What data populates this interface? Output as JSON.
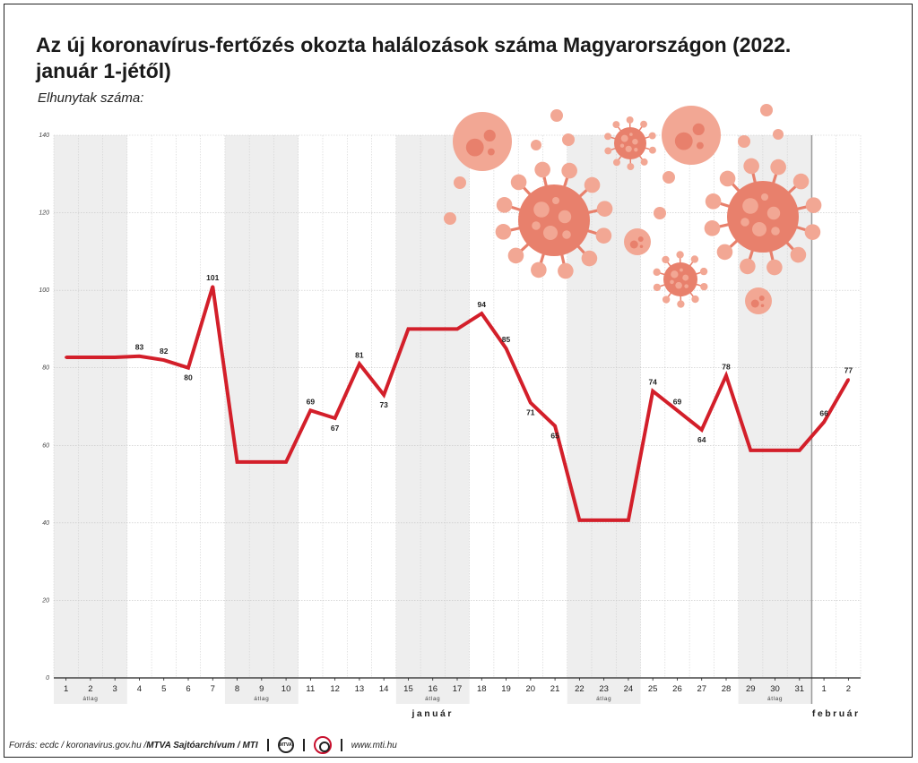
{
  "title": "Az új koronavírus-fertőzés okozta halálozások száma Magyarországon (2022. január 1-jétől)",
  "subtitle": "Elhunytak száma:",
  "chart_data": {
    "type": "line",
    "ylim": [
      0,
      140
    ],
    "yticks": [
      0,
      20,
      40,
      60,
      80,
      100,
      120,
      140
    ],
    "grid": true,
    "line_color": "#d31f2a",
    "categories": [
      "1",
      "2",
      "3",
      "4",
      "5",
      "6",
      "7",
      "8",
      "9",
      "10",
      "11",
      "12",
      "13",
      "14",
      "15",
      "16",
      "17",
      "18",
      "19",
      "20",
      "21",
      "22",
      "23",
      "24",
      "25",
      "26",
      "27",
      "28",
      "29",
      "30",
      "31",
      "1",
      "2"
    ],
    "values": [
      82.7,
      82.7,
      82.7,
      83,
      82,
      80,
      101,
      55.7,
      55.7,
      55.7,
      69,
      67,
      81,
      73,
      90,
      90,
      90,
      94,
      85,
      71,
      65,
      40.7,
      40.7,
      40.7,
      74,
      69,
      64,
      78,
      58.7,
      58.7,
      58.7,
      66,
      77
    ],
    "data_labels": [
      "",
      "",
      "",
      "83",
      "82",
      "80",
      "101",
      "",
      "",
      "",
      "69",
      "67",
      "81",
      "73",
      "",
      "",
      "",
      "94",
      "85",
      "71",
      "65",
      "",
      "",
      "",
      "74",
      "69",
      "64",
      "78",
      "",
      "",
      "",
      "66",
      "77"
    ],
    "label_below": [
      false,
      false,
      false,
      false,
      false,
      true,
      false,
      false,
      false,
      false,
      false,
      true,
      false,
      true,
      false,
      false,
      false,
      false,
      false,
      true,
      true,
      false,
      false,
      false,
      false,
      false,
      true,
      false,
      false,
      false,
      false,
      false,
      false
    ],
    "average_groups": [
      {
        "start": 0,
        "end": 2,
        "label": "átlag"
      },
      {
        "start": 7,
        "end": 9,
        "label": "átlag"
      },
      {
        "start": 14,
        "end": 16,
        "label": "átlag"
      },
      {
        "start": 21,
        "end": 23,
        "label": "átlag"
      },
      {
        "start": 28,
        "end": 30,
        "label": "átlag"
      }
    ],
    "months": [
      {
        "label": "január",
        "start": 0,
        "end": 30
      },
      {
        "label": "február",
        "start": 31,
        "end": 32
      }
    ]
  },
  "footer": {
    "source_prefix": "Forrás: ecdc / koronavirus.gov.hu / ",
    "archive": "MTVA Sajtóarchívum / MTI",
    "logo_text": "MTVA",
    "url": "www.mti.hu"
  }
}
